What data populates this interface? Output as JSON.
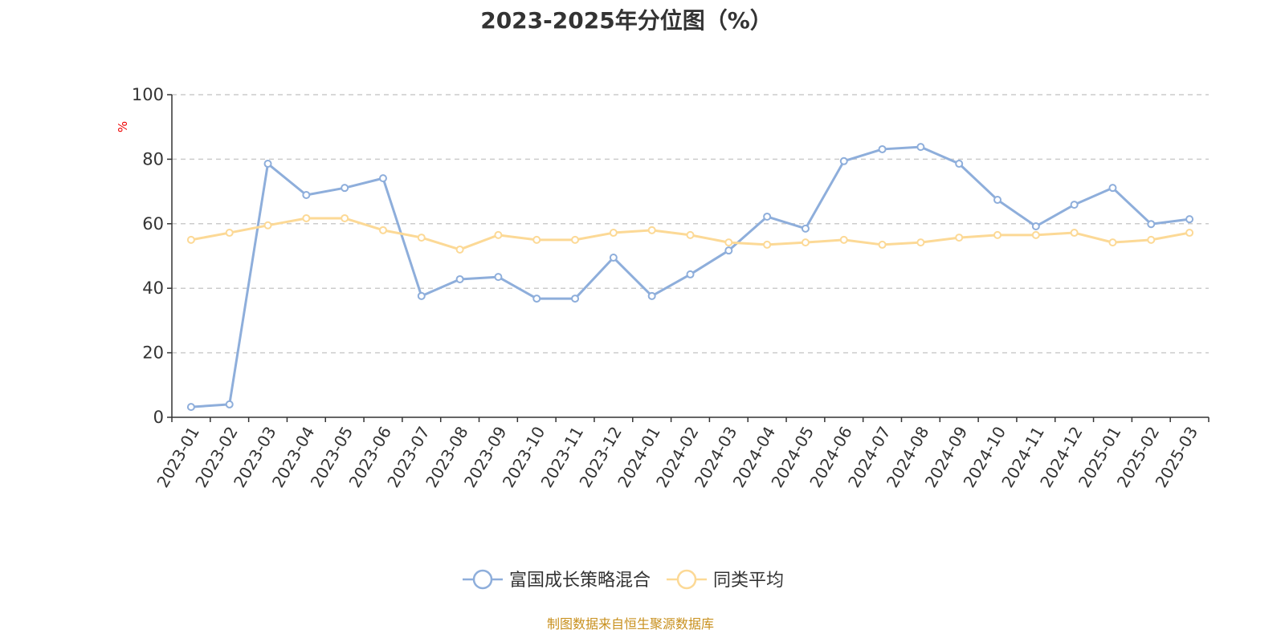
{
  "chart_data": {
    "type": "line",
    "title": "2023-2025年分位图（%）",
    "ylabel": "%",
    "xlabel": "",
    "ylim": [
      0,
      100
    ],
    "yticks": [
      0,
      20,
      40,
      60,
      80,
      100
    ],
    "grid": "horizontal dashed",
    "legend_position": "bottom",
    "categories": [
      "2023-01",
      "2023-02",
      "2023-03",
      "2023-04",
      "2023-05",
      "2023-06",
      "2023-07",
      "2023-08",
      "2023-09",
      "2023-10",
      "2023-11",
      "2023-12",
      "2024-01",
      "2024-02",
      "2024-03",
      "2024-04",
      "2024-05",
      "2024-06",
      "2024-07",
      "2024-08",
      "2024-09",
      "2024-10",
      "2024-11",
      "2024-12",
      "2025-01",
      "2025-02",
      "2025-03"
    ],
    "series": [
      {
        "name": "富国成长策略混合",
        "color": "#8eaedb",
        "values": [
          3.2,
          4.0,
          78.6,
          68.9,
          71.1,
          74.1,
          37.6,
          42.8,
          43.5,
          36.8,
          36.8,
          49.5,
          37.6,
          44.3,
          51.7,
          62.2,
          58.5,
          79.4,
          83.1,
          83.8,
          78.6,
          67.4,
          59.2,
          65.9,
          71.1,
          59.9,
          61.4
        ]
      },
      {
        "name": "同类平均",
        "color": "#fcd996",
        "values": [
          55.0,
          57.2,
          59.5,
          61.7,
          61.7,
          58.0,
          55.7,
          52.0,
          56.5,
          55.0,
          55.0,
          57.2,
          58.0,
          56.5,
          54.2,
          53.5,
          54.2,
          55.0,
          53.5,
          54.2,
          55.7,
          56.5,
          56.5,
          57.2,
          54.2,
          55.0,
          57.2
        ]
      }
    ]
  },
  "footer": "制图数据来自恒生聚源数据库"
}
